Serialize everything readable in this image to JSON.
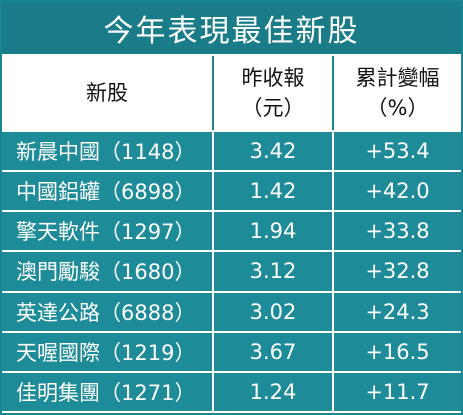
{
  "title": "今年表現最佳新股",
  "table": {
    "header": [
      [
        "新股"
      ],
      [
        "昨收報",
        "（元）"
      ],
      [
        "累計變幅",
        "（%）"
      ]
    ],
    "rows": [
      [
        "新晨中國（1148）",
        "3.42",
        "+53.4"
      ],
      [
        "中國鋁罐（6898）",
        "1.42",
        "+42.0"
      ],
      [
        "擎天軟件（1297）",
        "1.94",
        "+33.8"
      ],
      [
        "澳門勵駿（1680）",
        "3.12",
        "+32.8"
      ],
      [
        "英達公路（6888）",
        "3.02",
        "+24.3"
      ],
      [
        "天喔國際（1219）",
        "3.67",
        "+16.5"
      ],
      [
        "佳明集團（1271）",
        "1.24",
        "+11.7"
      ]
    ]
  }
}
